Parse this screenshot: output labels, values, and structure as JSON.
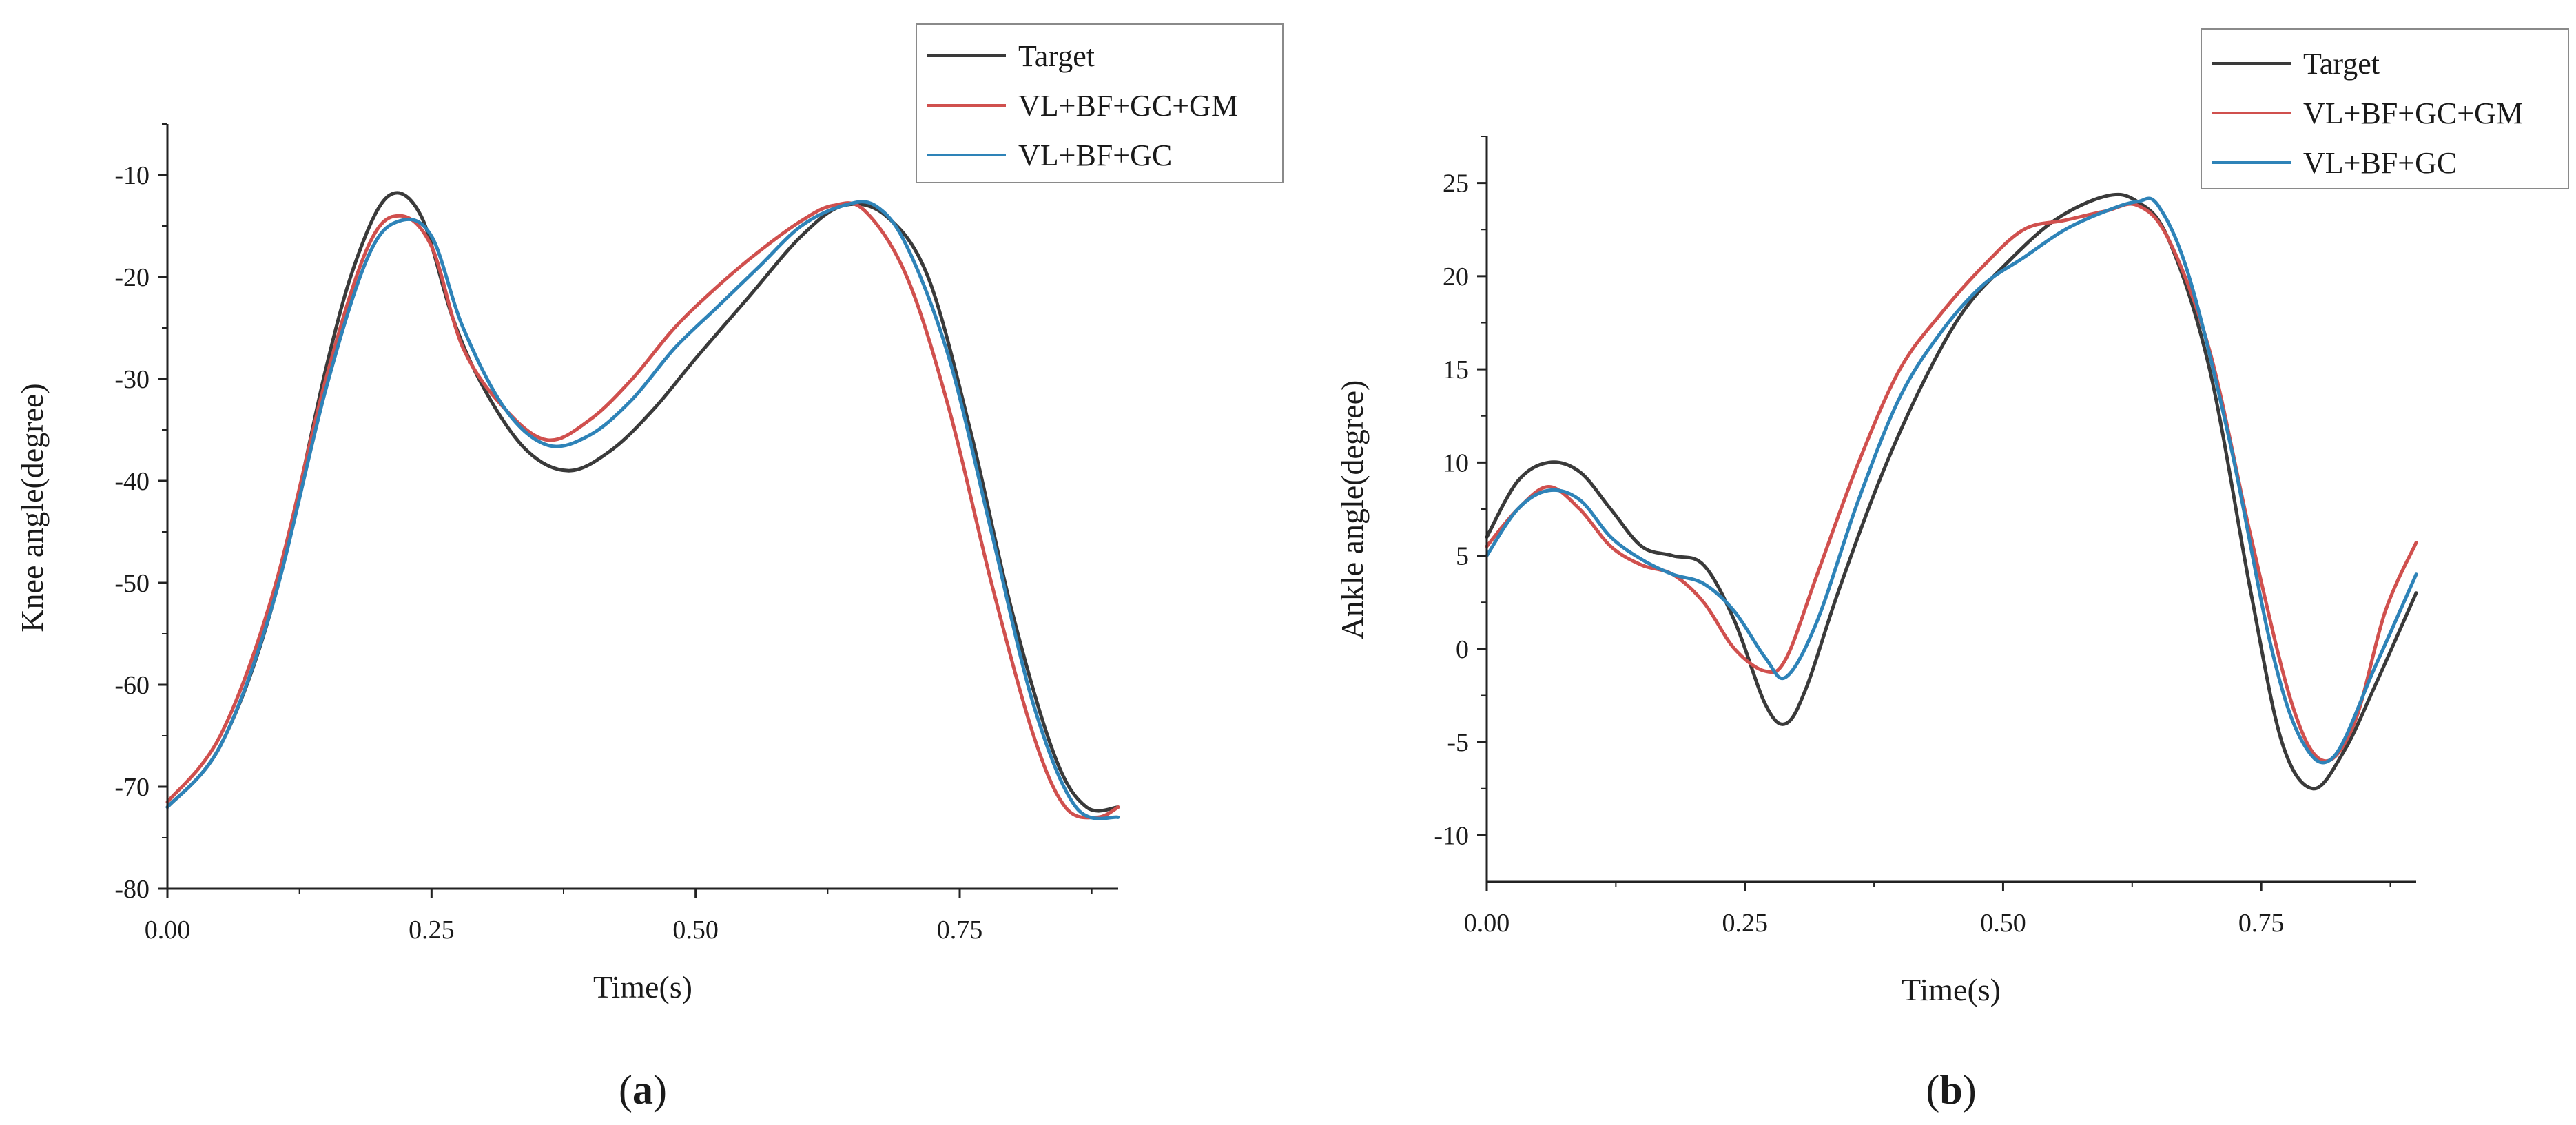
{
  "colors": {
    "target": "#3a3a3a",
    "model_a": "#d0504e",
    "model_b": "#2e83b8",
    "axis": "#222222"
  },
  "chart_data": [
    {
      "id": "a",
      "type": "line",
      "caption": {
        "open": "(",
        "letter": "a",
        "close": ")"
      },
      "xlabel": "Time(s)",
      "ylabel": "Knee angle(degree)",
      "xlim": [
        0,
        0.9
      ],
      "ylim": [
        -80,
        -5
      ],
      "xticks": [
        0,
        0.25,
        0.5,
        0.75
      ],
      "xtick_labels": [
        "0.00",
        "0.25",
        "0.50",
        "0.75"
      ],
      "yticks": [
        -80,
        -70,
        -60,
        -50,
        -40,
        -30,
        -20,
        -10
      ],
      "ytick_labels": [
        "-80",
        "-70",
        "-60",
        "-50",
        "-40",
        "-30",
        "-20",
        "-10"
      ],
      "legend": [
        "Target",
        "VL+BF+GC+GM",
        "VL+BF+GC"
      ],
      "legend_position": "top-right",
      "series": [
        {
          "name": "Target",
          "color_key": "target",
          "x": [
            0,
            0.05,
            0.1,
            0.15,
            0.18,
            0.21,
            0.24,
            0.27,
            0.3,
            0.34,
            0.38,
            0.42,
            0.46,
            0.5,
            0.55,
            0.6,
            0.64,
            0.68,
            0.72,
            0.76,
            0.8,
            0.84,
            0.87,
            0.9
          ],
          "y": [
            -72,
            -66,
            -52,
            -29,
            -18,
            -12,
            -14,
            -24,
            -31,
            -37,
            -39,
            -37,
            -33,
            -28,
            -22,
            -16,
            -13,
            -14,
            -20,
            -35,
            -53,
            -67,
            -72,
            -72
          ]
        },
        {
          "name": "VL+BF+GC+GM",
          "color_key": "model_a",
          "x": [
            0,
            0.05,
            0.1,
            0.15,
            0.19,
            0.22,
            0.25,
            0.28,
            0.32,
            0.36,
            0.4,
            0.44,
            0.48,
            0.52,
            0.56,
            0.6,
            0.63,
            0.66,
            0.7,
            0.74,
            0.78,
            0.82,
            0.85,
            0.88,
            0.9
          ],
          "y": [
            -71.5,
            -65,
            -51,
            -30,
            -17,
            -14,
            -17,
            -27,
            -33,
            -36,
            -34,
            -30,
            -25,
            -21,
            -17.5,
            -14.5,
            -13,
            -13.5,
            -20,
            -33,
            -50,
            -65,
            -72,
            -73,
            -72
          ]
        },
        {
          "name": "VL+BF+GC",
          "color_key": "model_b",
          "x": [
            0,
            0.05,
            0.1,
            0.15,
            0.19,
            0.22,
            0.25,
            0.28,
            0.32,
            0.36,
            0.4,
            0.44,
            0.48,
            0.52,
            0.56,
            0.6,
            0.64,
            0.67,
            0.7,
            0.74,
            0.78,
            0.82,
            0.86,
            0.9
          ],
          "y": [
            -72,
            -66,
            -52,
            -31,
            -18,
            -14.5,
            -16,
            -25,
            -33,
            -36.5,
            -35.5,
            -32,
            -27,
            -23,
            -19,
            -15,
            -13,
            -13,
            -17,
            -28,
            -45,
            -62,
            -72,
            -73
          ]
        }
      ]
    },
    {
      "id": "b",
      "type": "line",
      "caption": {
        "open": "(",
        "letter": "b",
        "close": ")"
      },
      "xlabel": "Time(s)",
      "ylabel": "Ankle angle(degree)",
      "xlim": [
        0,
        0.9
      ],
      "ylim": [
        -12.5,
        27.5
      ],
      "xticks": [
        0,
        0.25,
        0.5,
        0.75
      ],
      "xtick_labels": [
        "0.00",
        "0.25",
        "0.50",
        "0.75"
      ],
      "yticks": [
        -10,
        -5,
        0,
        5,
        10,
        15,
        20,
        25
      ],
      "ytick_labels": [
        "-10",
        "-5",
        "0",
        "5",
        "10",
        "15",
        "20",
        "25"
      ],
      "legend": [
        "Target",
        "VL+BF+GC+GM",
        "VL+BF+GC"
      ],
      "legend_position": "top-right",
      "series": [
        {
          "name": "Target",
          "color_key": "target",
          "x": [
            0,
            0.03,
            0.06,
            0.09,
            0.12,
            0.15,
            0.18,
            0.21,
            0.24,
            0.27,
            0.29,
            0.31,
            0.34,
            0.38,
            0.42,
            0.46,
            0.5,
            0.55,
            0.6,
            0.63,
            0.66,
            0.7,
            0.74,
            0.77,
            0.8,
            0.83,
            0.86,
            0.9
          ],
          "y": [
            6,
            9,
            10,
            9.5,
            7.5,
            5.5,
            5,
            4.5,
            1.5,
            -3,
            -4,
            -2,
            3,
            9,
            14,
            18,
            20.5,
            23,
            24.3,
            24,
            22,
            15,
            3,
            -5,
            -7.5,
            -5.5,
            -2,
            3
          ]
        },
        {
          "name": "VL+BF+GC+GM",
          "color_key": "model_a",
          "x": [
            0,
            0.03,
            0.06,
            0.09,
            0.12,
            0.15,
            0.18,
            0.21,
            0.24,
            0.27,
            0.29,
            0.32,
            0.36,
            0.4,
            0.44,
            0.48,
            0.52,
            0.56,
            0.6,
            0.63,
            0.66,
            0.7,
            0.74,
            0.78,
            0.81,
            0.84,
            0.87,
            0.9
          ],
          "y": [
            5.5,
            7.5,
            8.7,
            7.5,
            5.5,
            4.5,
            4,
            2.5,
            0,
            -1.2,
            -0.5,
            4,
            10,
            15,
            18,
            20.5,
            22.5,
            23,
            23.5,
            23.8,
            22,
            16,
            6,
            -3,
            -6,
            -4,
            2,
            5.7
          ]
        },
        {
          "name": "VL+BF+GC",
          "color_key": "model_b",
          "x": [
            0,
            0.03,
            0.06,
            0.09,
            0.12,
            0.15,
            0.18,
            0.21,
            0.24,
            0.27,
            0.29,
            0.32,
            0.36,
            0.4,
            0.44,
            0.48,
            0.52,
            0.56,
            0.6,
            0.63,
            0.65,
            0.68,
            0.72,
            0.76,
            0.79,
            0.82,
            0.86,
            0.9
          ],
          "y": [
            5,
            7.5,
            8.5,
            8,
            6,
            4.8,
            4,
            3.5,
            2,
            -0.5,
            -1.5,
            1.5,
            8,
            13.5,
            17,
            19.5,
            21,
            22.5,
            23.5,
            24,
            23.8,
            20,
            11,
            0,
            -5,
            -5.8,
            -1,
            4
          ]
        }
      ]
    }
  ]
}
